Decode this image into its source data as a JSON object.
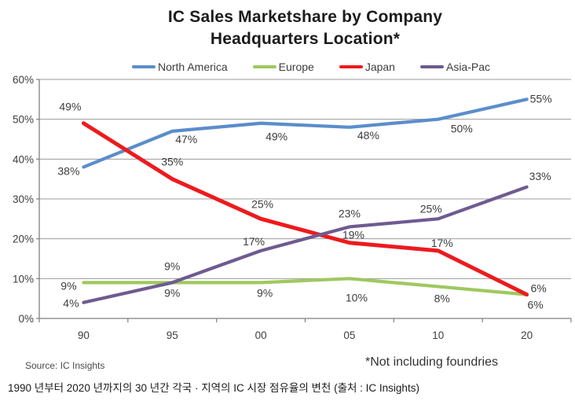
{
  "title_lines": [
    "IC Sales Marketshare by Company",
    "Headquarters Location*"
  ],
  "chart_data": {
    "type": "line",
    "title": "IC Sales Marketshare by Company Headquarters Location*",
    "x": [
      "90",
      "95",
      "00",
      "05",
      "10",
      "20"
    ],
    "xlabel": "",
    "ylabel": "",
    "ylim": [
      0,
      60
    ],
    "ytick_labels": [
      "0%",
      "10%",
      "20%",
      "30%",
      "40%",
      "50%",
      "60%"
    ],
    "grid": "horizontal",
    "legend_position": "top",
    "label_format": "percent",
    "series": [
      {
        "name": "North America",
        "color": "#5b8dcb",
        "values": [
          38,
          47,
          49,
          48,
          50,
          55
        ],
        "labels": [
          "38%",
          "47%",
          "49%",
          "48%",
          "50%",
          "55%"
        ],
        "label_offsets": [
          [
            -19,
            10
          ],
          [
            18,
            15
          ],
          [
            20,
            22
          ],
          [
            24,
            15
          ],
          [
            30,
            17
          ],
          [
            18,
            4
          ]
        ]
      },
      {
        "name": "Europe",
        "color": "#9fc860",
        "values": [
          9,
          9,
          9,
          10,
          8,
          6
        ],
        "labels": [
          "9%",
          "9%",
          "9%",
          "10%",
          "8%",
          "6%"
        ],
        "label_offsets": [
          [
            -19,
            9
          ],
          [
            0,
            18
          ],
          [
            5,
            18
          ],
          [
            9,
            29
          ],
          [
            5,
            20
          ],
          [
            11,
            18
          ]
        ]
      },
      {
        "name": "Japan",
        "color": "#ec1b1e",
        "values": [
          49,
          35,
          25,
          19,
          17,
          6
        ],
        "labels": [
          "49%",
          "35%",
          "25%",
          "19%",
          "17%",
          "6%"
        ],
        "label_offsets": [
          [
            -17,
            -16
          ],
          [
            0,
            -17
          ],
          [
            2,
            -14
          ],
          [
            5,
            -5
          ],
          [
            5,
            -5
          ],
          [
            15,
            -3
          ]
        ]
      },
      {
        "name": "Asia-Pac",
        "color": "#6e5b90",
        "values": [
          4,
          9,
          17,
          23,
          25,
          33
        ],
        "labels": [
          "4%",
          "9%",
          "17%",
          "23%",
          "25%",
          "33%"
        ],
        "label_offsets": [
          [
            -16,
            6
          ],
          [
            0,
            -16
          ],
          [
            -9,
            -7
          ],
          [
            0,
            -12
          ],
          [
            -9,
            -8
          ],
          [
            17,
            -9
          ]
        ]
      }
    ]
  },
  "footer": {
    "source": "Source:  IC Insights",
    "note": "*Not including foundries"
  },
  "caption": "1990 년부터 2020 년까지의 30 년간 각국 · 지역의 IC 시장 점유율의 변천 (출처 : IC Insights)"
}
